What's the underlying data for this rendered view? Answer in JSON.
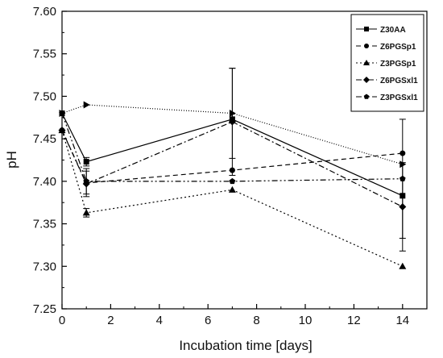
{
  "chart_data": {
    "type": "line",
    "title": "",
    "xlabel": "Incubation time [days]",
    "ylabel": "pH",
    "xlim": [
      0,
      15
    ],
    "ylim": [
      7.25,
      7.6
    ],
    "xticks": [
      "0",
      "2",
      "4",
      "6",
      "8",
      "10",
      "12",
      "14"
    ],
    "yticks": [
      "7.25",
      "7.30",
      "7.35",
      "7.40",
      "7.45",
      "7.50",
      "7.55",
      "7.60"
    ],
    "x": [
      0,
      1,
      7,
      14
    ],
    "legend_position": "top-right",
    "grid": false,
    "series": [
      {
        "name": "Z30AA",
        "dash": "solid",
        "marker": "square",
        "values": [
          7.48,
          7.423,
          7.473,
          7.383
        ],
        "errors": [
          0,
          0.005,
          0,
          0
        ]
      },
      {
        "name": "Z6PGSp1",
        "dash": "dashed",
        "marker": "circle",
        "values": [
          7.46,
          7.398,
          7.413,
          7.433
        ],
        "errors": [
          0,
          0,
          0,
          0
        ]
      },
      {
        "name": "Z3PGSp1",
        "dash": "dotted",
        "marker": "triangle",
        "values": [
          7.46,
          7.363,
          7.39,
          7.3
        ],
        "errors": [
          0,
          0.005,
          0,
          0
        ]
      },
      {
        "name": "Z6PGSxl1",
        "dash": "dashdot",
        "marker": "diamond",
        "values": [
          7.46,
          7.397,
          7.47,
          7.37
        ],
        "errors": [
          0,
          0.015,
          0.063,
          0.052
        ]
      },
      {
        "name": "Z3PGSxl1",
        "dash": "dashdotdot",
        "marker": "pentagon",
        "values": [
          7.48,
          7.4,
          7.4,
          7.403
        ],
        "errors": [
          0,
          0.015,
          0,
          0.07
        ]
      },
      {
        "name": "",
        "dash": "shortdot",
        "marker": "right-triangle",
        "values": [
          7.48,
          7.49,
          7.48,
          7.42
        ],
        "errors": [
          0,
          0,
          0.053,
          0
        ]
      }
    ]
  }
}
